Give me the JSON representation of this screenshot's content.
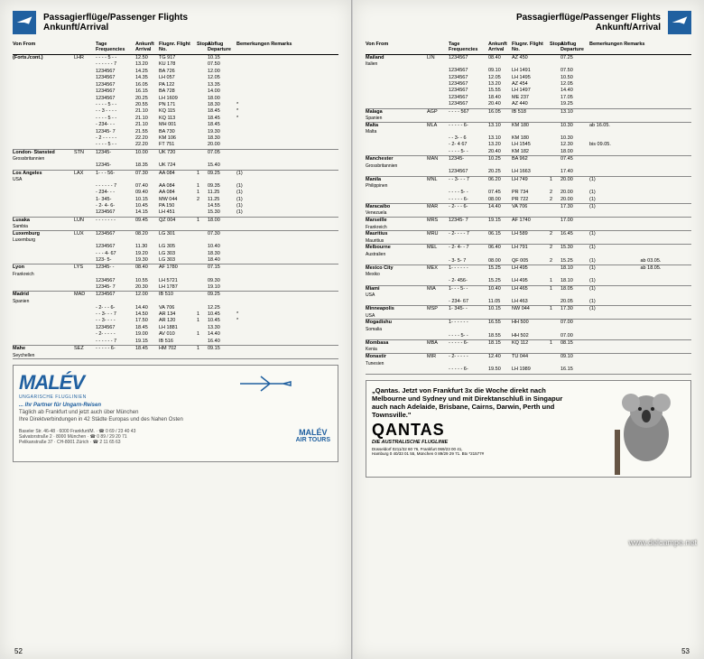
{
  "header": {
    "title_line1": "Passagierflüge/Passenger Flights",
    "title_line2": "Ankunft/Arrival"
  },
  "columns": {
    "from": "Von\nFrom",
    "freq": "Tage\nFrequencies",
    "arr": "Ankunft\nArrival",
    "flight": "Flugnr.\nFlight No.",
    "stops": "Stops",
    "dep": "Abflug\nDeparture",
    "rem": "Bemerkungen\nRemarks"
  },
  "left": {
    "pageNum": "52",
    "groups": [
      {
        "from": "(Forts./cont.)",
        "code": "LHR",
        "rows": [
          [
            "- - - - 5 - -",
            "12.50",
            "TG  917",
            "",
            "10.15",
            ""
          ],
          [
            "- - - - - - 7",
            "13.20",
            "KU  178",
            "",
            "07.50",
            ""
          ],
          [
            "1234567",
            "14.25",
            "BA  726",
            "",
            "12.00",
            ""
          ],
          [
            "1234567",
            "14.35",
            "LH  057",
            "",
            "12.05",
            ""
          ],
          [
            "1234567",
            "16.05",
            "PA  122",
            "",
            "13.35",
            ""
          ],
          [
            "1234567",
            "16.15",
            "BA  728",
            "",
            "14.00",
            ""
          ],
          [
            "1234567",
            "20.25",
            "LH 1609",
            "",
            "18.00",
            ""
          ],
          [
            "- - - - 5 - -",
            "20.55",
            "PN  171",
            "",
            "18.30",
            "*"
          ],
          [
            "- - 3 - - - -",
            "21.10",
            "KQ  115",
            "",
            "18.45",
            "*"
          ],
          [
            "- - - - 5 - -",
            "21.10",
            "KQ  113",
            "",
            "18.45",
            "*"
          ],
          [
            "- 234- - -",
            "21.10",
            "MH  001",
            "",
            "18.45",
            ""
          ],
          [
            "12345- 7",
            "21.55",
            "BA  730",
            "",
            "19.30",
            ""
          ],
          [
            "- 2 - - - - -",
            "22.20",
            "KM  106",
            "",
            "18.30",
            ""
          ],
          [
            "- - - - 5 - -",
            "22.20",
            "FT  751",
            "",
            "20.00",
            ""
          ]
        ]
      },
      {
        "from": "London- Stansted",
        "sub": "Grossbritannien",
        "code": "STN",
        "rows": [
          [
            "12345-",
            "10.00",
            "UK  720",
            "",
            "07.05",
            ""
          ],
          [
            "12345-",
            "18.35",
            "UK  724",
            "",
            "15.40",
            ""
          ]
        ]
      },
      {
        "from": "Los Angeles",
        "sub": "USA",
        "code": "LAX",
        "rows": [
          [
            "1- - - 56-",
            "07.30",
            "AA  084",
            "1",
            "09.25",
            "(1)"
          ],
          [
            "- - - - - - 7",
            "07.40",
            "AA  084",
            "1",
            "09.35",
            "(1)"
          ],
          [
            "- 234- - -",
            "09.40",
            "AA  084",
            "1",
            "11.25",
            "(1)"
          ],
          [
            "1- 345-",
            "10.15",
            "MW  044",
            "2",
            "11.25",
            "(1)"
          ],
          [
            "- 2- 4- 6-",
            "10.45",
            "PA  150",
            "",
            "14.55",
            "(1)"
          ],
          [
            "1234567",
            "14.15",
            "LH  451",
            "",
            "15.30",
            "(1)"
          ]
        ]
      },
      {
        "from": "Lusaka",
        "sub": "Sambia",
        "code": "LUN",
        "rows": [
          [
            "- - - - - - -",
            "09.45",
            "QZ  004",
            "1",
            "18.00",
            ""
          ]
        ]
      },
      {
        "from": "Luxemburg",
        "sub": "Luxemburg",
        "code": "LUX",
        "rows": [
          [
            "1234567",
            "08.20",
            "LG  301",
            "",
            "07.30",
            ""
          ],
          [
            "1234567",
            "11.30",
            "LG  305",
            "",
            "10.40",
            ""
          ],
          [
            "- - - 4- 67",
            "19.20",
            "LG  303",
            "",
            "18.30",
            ""
          ],
          [
            "123- 5-",
            "19.30",
            "LG  303",
            "",
            "18.40",
            ""
          ]
        ]
      },
      {
        "from": "Lyon",
        "sub": "Frankreich",
        "code": "LYS",
        "rows": [
          [
            "12345- -",
            "08.40",
            "AF 1780",
            "",
            "07.15",
            ""
          ],
          [
            "1234567",
            "10.55",
            "LH 5721",
            "",
            "09.30",
            ""
          ],
          [
            "12345- 7",
            "20.30",
            "LH 1787",
            "",
            "19.10",
            ""
          ]
        ]
      },
      {
        "from": "Madrid",
        "sub": "Spanien",
        "code": "MAD",
        "rows": [
          [
            "1234567",
            "12.00",
            "IB  510",
            "",
            "09.25",
            ""
          ],
          [
            "- 2- - - 6-",
            "14.40",
            "VA  706",
            "",
            "12.25",
            ""
          ],
          [
            "- - 3- - - 7",
            "14.50",
            "AR  134",
            "1",
            "10.45",
            "*"
          ],
          [
            "- - 3- - - -",
            "17.50",
            "AR  120",
            "1",
            "10.45",
            "*"
          ],
          [
            "1234567",
            "18.45",
            "LH 1881",
            "",
            "13.30",
            ""
          ],
          [
            "- 2- - - - -",
            "19.00",
            "AV  010",
            "1",
            "14.40",
            ""
          ],
          [
            "- - - - - - 7",
            "19.15",
            "IB  516",
            "",
            "16.40",
            ""
          ]
        ]
      },
      {
        "from": "Mahe",
        "sub": "Seychellen",
        "code": "SEZ",
        "rows": [
          [
            "- - - - - 6-",
            "18.45",
            "HM  702",
            "1",
            "09.15",
            ""
          ]
        ]
      }
    ]
  },
  "right": {
    "pageNum": "53",
    "groups": [
      {
        "from": "Mailand",
        "sub": "Italien",
        "code": "LIN",
        "rows": [
          [
            "1234567",
            "08.40",
            "AZ  450",
            "",
            "07.25",
            ""
          ],
          [
            "1234567",
            "09.10",
            "LH 1491",
            "",
            "07.50",
            ""
          ],
          [
            "1234567",
            "12.05",
            "LH 1495",
            "",
            "10.50",
            ""
          ],
          [
            "1234567",
            "13.20",
            "AZ  454",
            "",
            "12.05",
            ""
          ],
          [
            "1234567",
            "15.55",
            "LH 1497",
            "",
            "14.40",
            ""
          ],
          [
            "1234567",
            "18.40",
            "ME  237",
            "",
            "17.05",
            ""
          ],
          [
            "1234567",
            "20.40",
            "AZ  440",
            "",
            "19.25",
            ""
          ]
        ]
      },
      {
        "from": "Malaga",
        "sub": "Spanien",
        "code": "AGP",
        "rows": [
          [
            "- - - - 567",
            "16.05",
            "IB  518",
            "",
            "13.10",
            ""
          ]
        ]
      },
      {
        "from": "Malta",
        "sub": "Malta",
        "code": "MLA",
        "rows": [
          [
            "- - - - - 6-",
            "13.10",
            "KM  180",
            "",
            "10.30",
            "ab 16.05."
          ],
          [
            "- - 3- - 6",
            "13.10",
            "KM  180",
            "",
            "10.30",
            ""
          ],
          [
            "- 2- 4 67",
            "13.20",
            "LH 1545",
            "",
            "12.30",
            "bis 09.05."
          ],
          [
            "- - - - 5- -",
            "20.40",
            "KM  182",
            "",
            "18.00",
            ""
          ]
        ]
      },
      {
        "from": "Manchester",
        "sub": "Grossbritannien",
        "code": "MAN",
        "rows": [
          [
            "12345-",
            "10.25",
            "BA  962",
            "",
            "07.45",
            ""
          ],
          [
            "1234567",
            "20.25",
            "LH 1663",
            "",
            "17.40",
            ""
          ]
        ]
      },
      {
        "from": "Manila",
        "sub": "Philippinen",
        "code": "MNL",
        "rows": [
          [
            "- - 3- - - 7",
            "06.20",
            "LH  749",
            "1",
            "20.00",
            "(1)"
          ],
          [
            "- - - - 5- -",
            "07.45",
            "PR  734",
            "2",
            "20.00",
            "(1)"
          ],
          [
            "- - - - - 6-",
            "08.00",
            "PR  722",
            "2",
            "20.00",
            "(1)"
          ]
        ]
      },
      {
        "from": "Maracaibo",
        "sub": "Venezuela",
        "code": "MAR",
        "rows": [
          [
            "- 2- - - 6-",
            "14.40",
            "VA  706",
            "",
            "17.30",
            "(1)"
          ]
        ]
      },
      {
        "from": "Marseille",
        "sub": "Frankreich",
        "code": "MRS",
        "rows": [
          [
            "12345- 7",
            "19.15",
            "AF 1740",
            "",
            "17.00",
            ""
          ]
        ]
      },
      {
        "from": "Mauritius",
        "sub": "Mauritius",
        "code": "MRU",
        "rows": [
          [
            "- 2- - - - 7",
            "06.15",
            "LH  589",
            "2",
            "16.45",
            "(1)"
          ]
        ]
      },
      {
        "from": "Melbourne",
        "sub": "Australien",
        "code": "MEL",
        "rows": [
          [
            "- 2- 4- - 7",
            "06.40",
            "LH  791",
            "2",
            "15.30",
            "(1)"
          ],
          [
            "- 3- 5- 7",
            "08.00",
            "QF  005",
            "2",
            "15.25",
            "(1)",
            "ab 03.05."
          ]
        ]
      },
      {
        "from": "Mexico City",
        "sub": "Mexiko",
        "code": "MEX",
        "rows": [
          [
            "1- - - - - -",
            "15.25",
            "LH  495",
            "",
            "18.10",
            "(1)",
            "ab 18.05."
          ],
          [
            "- 2- 456-",
            "15.25",
            "LH  495",
            "1",
            "18.10",
            "(1)",
            ""
          ]
        ]
      },
      {
        "from": "Miami",
        "sub": "USA",
        "code": "MIA",
        "rows": [
          [
            "1- - - 5- -",
            "10.40",
            "LH  465",
            "1",
            "18.05",
            "(1)"
          ],
          [
            "- 234- 67",
            "11.05",
            "LH  463",
            "",
            "20.05",
            "(1)"
          ]
        ]
      },
      {
        "from": "Minneapolis",
        "sub": "USA",
        "code": "MSP",
        "rows": [
          [
            "1- 345- -",
            "10.15",
            "NW  044",
            "1",
            "17.30",
            "(1)"
          ]
        ]
      },
      {
        "from": "Mogadishu",
        "sub": "Somalia",
        "code": "",
        "rows": [
          [
            "1- - - - - -",
            "16.55",
            "HH  500",
            "",
            "07.00",
            ""
          ],
          [
            "- - - - 5- -",
            "18.55",
            "HH  502",
            "",
            "07.00",
            ""
          ]
        ]
      },
      {
        "from": "Mombasa",
        "sub": "Kenia",
        "code": "MBA",
        "rows": [
          [
            "- - - - - 6-",
            "18.15",
            "KQ  112",
            "1",
            "08.15",
            ""
          ]
        ]
      },
      {
        "from": "Monastir",
        "sub": "Tunesien",
        "code": "MIR",
        "rows": [
          [
            "- 2- - - - -",
            "12.40",
            "TU  044",
            "",
            "09.10",
            ""
          ],
          [
            "- - - - - 6-",
            "19.50",
            "LH 1989",
            "",
            "16.15",
            ""
          ]
        ]
      }
    ]
  },
  "malev": {
    "logo": "MALÉV",
    "tagline": "UNGARISCHE FLUGLINIEN",
    "headline": "... Ihr Partner für Ungarn-Reisen",
    "body": "Täglich ab Frankfurt und jetzt auch über München\nIhre Direktverbindungen in 42 Städte Europas und des Nahen Osten",
    "addr": "Baseler Str. 46-48 · 6000 Frankfurt/M. · ☎ 0 69 / 23 40 43\nSalvatorstraße 2 · 8000 München · ☎ 0 89 / 29 20 71\nPelikanstraße 37 · CH-8001 Zürich · ☎ 2 11 65 63",
    "airtours1": "MALÉV",
    "airtours2": "AIR TOURS"
  },
  "qantas": {
    "quote": "„Qantas. Jetzt von Frankfurt 3x die Woche direkt nach Melbourne und Sydney und mit Direktanschluß in Singapur auch nach Adelaide, Brisbane, Cairns, Darwin, Perth und Townsville.\"",
    "logo": "QANTAS",
    "sub": "DIE AUSTRALISCHE FLUGLINIE",
    "addr": "Düsseldorf 0211/32 60 76, Frankfurt 069/23 00 41,\nHamburg 0 40/33 01 55, München 0 89/29 29 71. Btx *21577#"
  },
  "watermark": "www.delcampe.net"
}
